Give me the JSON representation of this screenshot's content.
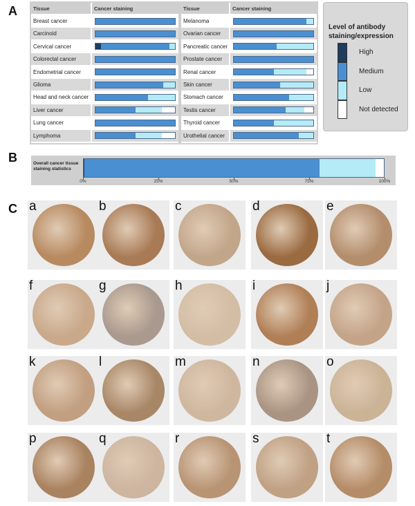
{
  "panel_labels": [
    "A",
    "B",
    "C"
  ],
  "chart_data": [
    {
      "type": "stacked-bar-table",
      "columns": [
        "Tissue",
        "Cancer staining"
      ],
      "legend_title": "Level of antibody staining/expression",
      "categories": [
        "Breast cancer",
        "Carcinoid",
        "Cervical cancer",
        "Colorectal cancer",
        "Endometrial cancer",
        "Glioma",
        "Head and neck cancer",
        "Liver cancer",
        "Lung cancer",
        "Lymphoma"
      ],
      "series": [
        {
          "name": "High",
          "color": "#1f3d5c",
          "values": [
            0,
            0,
            8,
            0,
            0,
            0,
            0,
            0,
            0,
            0
          ]
        },
        {
          "name": "Medium",
          "color": "#4a8fd1",
          "values": [
            100,
            100,
            84,
            100,
            100,
            85,
            66,
            50,
            100,
            50
          ]
        },
        {
          "name": "Low",
          "color": "#b5ebf7",
          "values": [
            0,
            0,
            8,
            0,
            0,
            15,
            34,
            33,
            0,
            33
          ]
        },
        {
          "name": "Not detected",
          "color": "#ffffff",
          "values": [
            0,
            0,
            0,
            0,
            0,
            0,
            0,
            17,
            0,
            17
          ]
        }
      ]
    },
    {
      "type": "stacked-bar-table",
      "columns": [
        "Tissue",
        "Cancer staining"
      ],
      "categories": [
        "Melanoma",
        "Ovarian cancer",
        "Pancreatic cancer",
        "Prostate cancer",
        "Renal cancer",
        "Skin cancer",
        "Stomach cancer",
        "Testis cancer",
        "Thyroid cancer",
        "Urothelial cancer"
      ],
      "series": [
        {
          "name": "High",
          "color": "#1f3d5c",
          "values": [
            0,
            0,
            0,
            0,
            0,
            0,
            0,
            0,
            0,
            0
          ]
        },
        {
          "name": "Medium",
          "color": "#4a8fd1",
          "values": [
            91,
            100,
            54,
            100,
            50,
            58,
            69,
            65,
            50,
            81
          ]
        },
        {
          "name": "Low",
          "color": "#b5ebf7",
          "values": [
            9,
            0,
            46,
            0,
            41,
            42,
            31,
            23,
            50,
            19
          ]
        },
        {
          "name": "Not detected",
          "color": "#ffffff",
          "values": [
            0,
            0,
            0,
            0,
            9,
            0,
            0,
            12,
            0,
            0
          ]
        }
      ]
    },
    {
      "type": "stacked-bar",
      "label": "Overall cancer tissue staining statistics",
      "xlim": [
        0,
        100
      ],
      "xticks": [
        {
          "value": 0,
          "label": "0%"
        },
        {
          "value": 25,
          "label": "25%"
        },
        {
          "value": 50,
          "label": "50%"
        },
        {
          "value": 75,
          "label": "75%"
        },
        {
          "value": 100,
          "label": "100%"
        }
      ],
      "series": [
        {
          "name": "High",
          "color": "#1f3d5c",
          "values": [
            0.5
          ]
        },
        {
          "name": "Medium",
          "color": "#4a8fd1",
          "values": [
            78
          ]
        },
        {
          "name": "Low",
          "color": "#b5ebf7",
          "values": [
            18.5
          ]
        },
        {
          "name": "Not detected",
          "color": "#ffffff",
          "values": [
            3
          ]
        }
      ]
    }
  ],
  "tiles": [
    {
      "label": "a",
      "color": "#b88a60"
    },
    {
      "label": "b",
      "color": "#a87a55"
    },
    {
      "label": "c",
      "color": "#c2a68a"
    },
    {
      "label": "d",
      "color": "#9a6a40"
    },
    {
      "label": "e",
      "color": "#b38d6c"
    },
    {
      "label": "f",
      "color": "#c9a98a"
    },
    {
      "label": "g",
      "color": "#a9998e"
    },
    {
      "label": "h",
      "color": "#d3bda5"
    },
    {
      "label": "i",
      "color": "#b07f56"
    },
    {
      "label": "j",
      "color": "#c4a488"
    },
    {
      "label": "k",
      "color": "#c29f80"
    },
    {
      "label": "l",
      "color": "#a88767"
    },
    {
      "label": "m",
      "color": "#cfb79f"
    },
    {
      "label": "n",
      "color": "#a99484"
    },
    {
      "label": "o",
      "color": "#cbb396"
    },
    {
      "label": "p",
      "color": "#a9825f"
    },
    {
      "label": "q",
      "color": "#cdb5a0"
    },
    {
      "label": "r",
      "color": "#b89474"
    },
    {
      "label": "s",
      "color": "#c0a184"
    },
    {
      "label": "t",
      "color": "#b58c68"
    }
  ]
}
